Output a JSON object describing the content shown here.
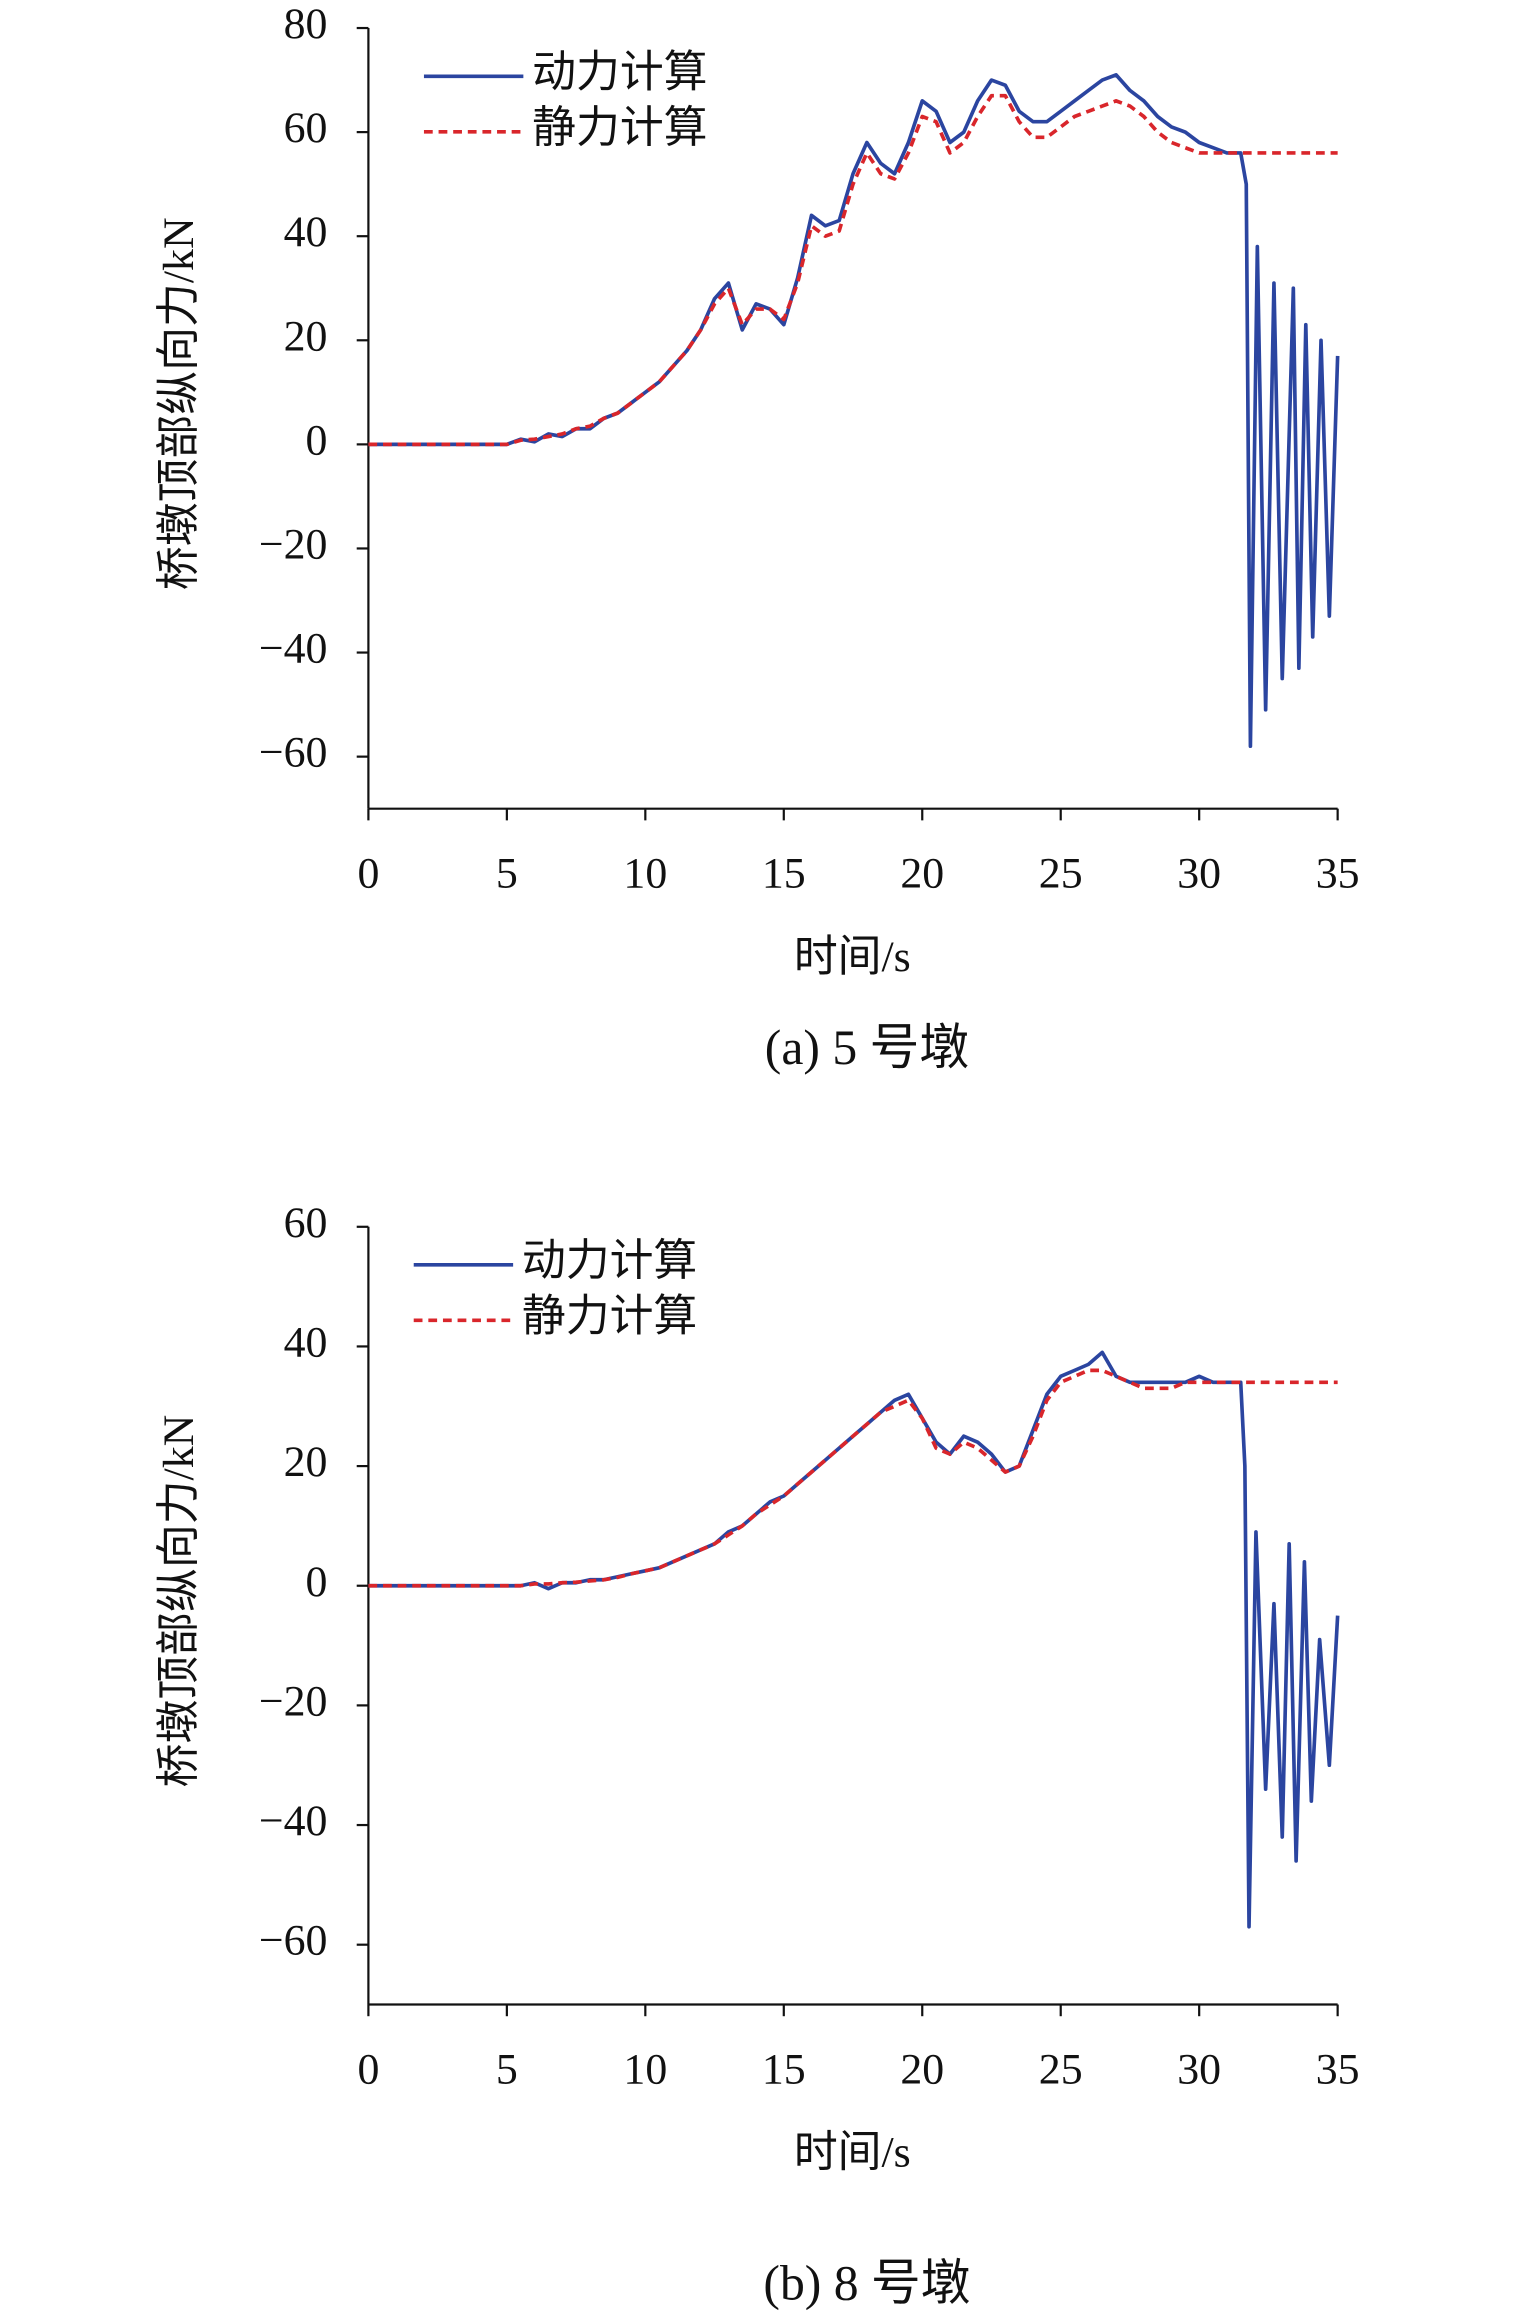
{
  "chart_data": [
    {
      "type": "line",
      "caption": "(a) 5 号墩",
      "xlabel": "时间/s",
      "ylabel": "桥墩顶部纵向力/kN",
      "xlim": [
        0,
        35
      ],
      "xticks": [
        0,
        5,
        10,
        15,
        20,
        25,
        30,
        35
      ],
      "ylim": [
        -70,
        80
      ],
      "yticks": [
        80,
        60,
        40,
        20,
        0,
        {
          "value": -20,
          "label": "−20"
        },
        {
          "value": -40,
          "label": "−40"
        },
        {
          "value": -60,
          "label": "−60"
        }
      ],
      "legend": "upper left",
      "x": [
        0,
        5,
        5.5,
        6,
        6.5,
        7,
        7.5,
        8,
        8.5,
        9,
        9.5,
        10,
        10.5,
        11,
        11.5,
        12,
        12.5,
        13,
        13.5,
        14,
        14.5,
        15,
        15.5,
        16,
        16.5,
        17,
        17.5,
        18,
        18.5,
        19,
        19.5,
        20,
        20.5,
        21,
        21.5,
        22,
        22.5,
        23,
        23.5,
        24,
        24.5,
        25,
        25.5,
        26,
        26.5,
        27,
        27.5,
        28,
        28.5,
        29,
        29.5,
        30,
        30.5,
        31,
        31.5,
        31.7,
        31.85,
        32.1,
        32.4,
        32.7,
        33.0,
        33.4,
        33.6,
        33.85,
        34.1,
        34.4,
        34.7,
        35
      ],
      "series": [
        {
          "name": "动力计算",
          "color": "#2b45a0",
          "style": "solid",
          "values": [
            0,
            0,
            1,
            0.5,
            2,
            1.5,
            3,
            3,
            5,
            6,
            8,
            10,
            12,
            15,
            18,
            22,
            28,
            31,
            22,
            27,
            26,
            23,
            32,
            44,
            42,
            43,
            52,
            58,
            54,
            52,
            58,
            66,
            64,
            58,
            60,
            66,
            70,
            69,
            64,
            62,
            62,
            64,
            66,
            68,
            70,
            71,
            68,
            66,
            63,
            61,
            60,
            58,
            57,
            56,
            56,
            50,
            -58,
            38,
            -51,
            31,
            -45,
            30,
            -43,
            23,
            -37,
            20,
            -33,
            17
          ]
        },
        {
          "name": "静力计算",
          "color": "#d9262b",
          "style": "dashed",
          "values": [
            0,
            0,
            0.8,
            1,
            1.5,
            2,
            3,
            3.5,
            5,
            6,
            8,
            10,
            12,
            15,
            18,
            22,
            27,
            30,
            23,
            26,
            26,
            24,
            31,
            42,
            40,
            41,
            50,
            56,
            52,
            51,
            56,
            63,
            62,
            56,
            58,
            63,
            67,
            67,
            62,
            59,
            59,
            61,
            63,
            64,
            65,
            66,
            65,
            63,
            60,
            58,
            57,
            56,
            56,
            56,
            56,
            56,
            56,
            56,
            56,
            56,
            56,
            56,
            56,
            56,
            56,
            56,
            56,
            56
          ]
        }
      ]
    },
    {
      "type": "line",
      "caption": "(b) 8 号墩",
      "xlabel": "时间/s",
      "ylabel": "桥墩顶部纵向力/kN",
      "xlim": [
        0,
        35
      ],
      "xticks": [
        0,
        5,
        10,
        15,
        20,
        25,
        30,
        35
      ],
      "ylim": [
        -70,
        60
      ],
      "yticks": [
        60,
        40,
        20,
        0,
        {
          "value": -20,
          "label": "−20"
        },
        {
          "value": -40,
          "label": "−40"
        },
        {
          "value": -60,
          "label": "−60"
        }
      ],
      "legend": "upper left",
      "x": [
        0,
        5,
        5.5,
        6,
        6.5,
        7,
        7.5,
        8,
        8.5,
        9,
        9.5,
        10,
        10.5,
        11,
        11.5,
        12,
        12.5,
        13,
        13.5,
        14,
        14.5,
        15,
        15.5,
        16,
        16.5,
        17,
        17.5,
        18,
        18.5,
        19,
        19.5,
        20,
        20.5,
        21,
        21.5,
        22,
        22.5,
        23,
        23.5,
        24,
        24.5,
        25,
        25.5,
        26,
        26.5,
        27,
        27.5,
        28,
        28.5,
        29,
        29.5,
        30,
        30.5,
        31,
        31.5,
        31.65,
        31.8,
        32.05,
        32.4,
        32.7,
        33.0,
        33.25,
        33.5,
        33.8,
        34.05,
        34.35,
        34.7,
        35
      ],
      "series": [
        {
          "name": "动力计算",
          "color": "#2b45a0",
          "style": "solid",
          "values": [
            0,
            0,
            0,
            0.5,
            -0.5,
            0.5,
            0.5,
            1,
            1,
            1.5,
            2,
            2.5,
            3,
            4,
            5,
            6,
            7,
            9,
            10,
            12,
            14,
            15,
            17,
            19,
            21,
            23,
            25,
            27,
            29,
            31,
            32,
            28,
            24,
            22,
            25,
            24,
            22,
            19,
            20,
            26,
            32,
            35,
            36,
            37,
            39,
            35,
            34,
            34,
            34,
            34,
            34,
            35,
            34,
            34,
            34,
            20,
            -57,
            9,
            -34,
            -3,
            -42,
            7,
            -46,
            4,
            -36,
            -9,
            -30,
            -5
          ]
        },
        {
          "name": "静力计算",
          "color": "#d9262b",
          "style": "dashed",
          "values": [
            0,
            0,
            0,
            0.3,
            0.3,
            0.5,
            0.6,
            0.8,
            1,
            1.4,
            2,
            2.5,
            3,
            4,
            5,
            6,
            7,
            8.5,
            10,
            12,
            13.5,
            15,
            17,
            19,
            21,
            23,
            25,
            27,
            29,
            30,
            31,
            28,
            23,
            22,
            24,
            23,
            21,
            19,
            20,
            25,
            31,
            34,
            35,
            36,
            36,
            35,
            34,
            33,
            33,
            33,
            34,
            34,
            34,
            34,
            34,
            34,
            34,
            34,
            34,
            34,
            34,
            34,
            34,
            34,
            34,
            34,
            34,
            34
          ]
        }
      ]
    }
  ]
}
